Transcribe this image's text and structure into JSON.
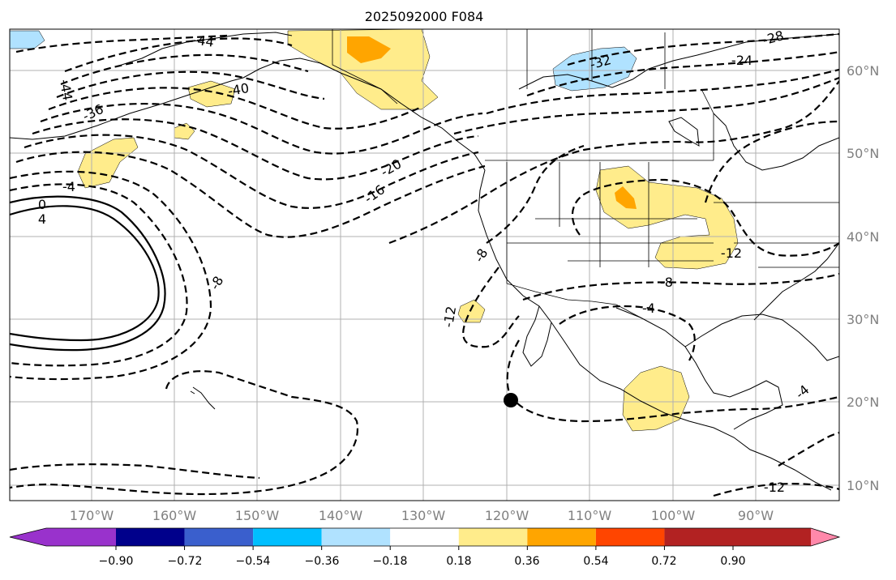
{
  "title": "2025092000 F084",
  "map": {
    "lon_labels": [
      "170°W",
      "160°W",
      "150°W",
      "140°W",
      "130°W",
      "120°W",
      "110°W",
      "100°W",
      "90°W"
    ],
    "lat_labels": [
      "60°N",
      "50°N",
      "40°N",
      "30°N",
      "20°N",
      "10°N"
    ],
    "contour_labels": [
      "-44",
      "-44",
      "-36",
      "-40",
      "-4",
      "0",
      "4",
      "-8",
      "-20",
      "-16",
      "-8",
      "-12",
      "-32",
      "-28",
      "-24",
      "-12",
      "-8",
      "-4",
      "-12",
      "-4"
    ],
    "marker": {
      "lon": -119.5,
      "lat": 20.0
    }
  },
  "colorbar": {
    "ticks": [
      "−0.90",
      "−0.72",
      "−0.54",
      "−0.36",
      "−0.18",
      "0.18",
      "0.36",
      "0.54",
      "0.72",
      "0.90"
    ],
    "colors": [
      "#9932cc",
      "#00008b",
      "#3a5fcd",
      "#00bfff",
      "#b0e2ff",
      "#ffffff",
      "#ffec8b",
      "#ffa500",
      "#ff4500",
      "#b22222",
      "#ff88aa"
    ]
  }
}
